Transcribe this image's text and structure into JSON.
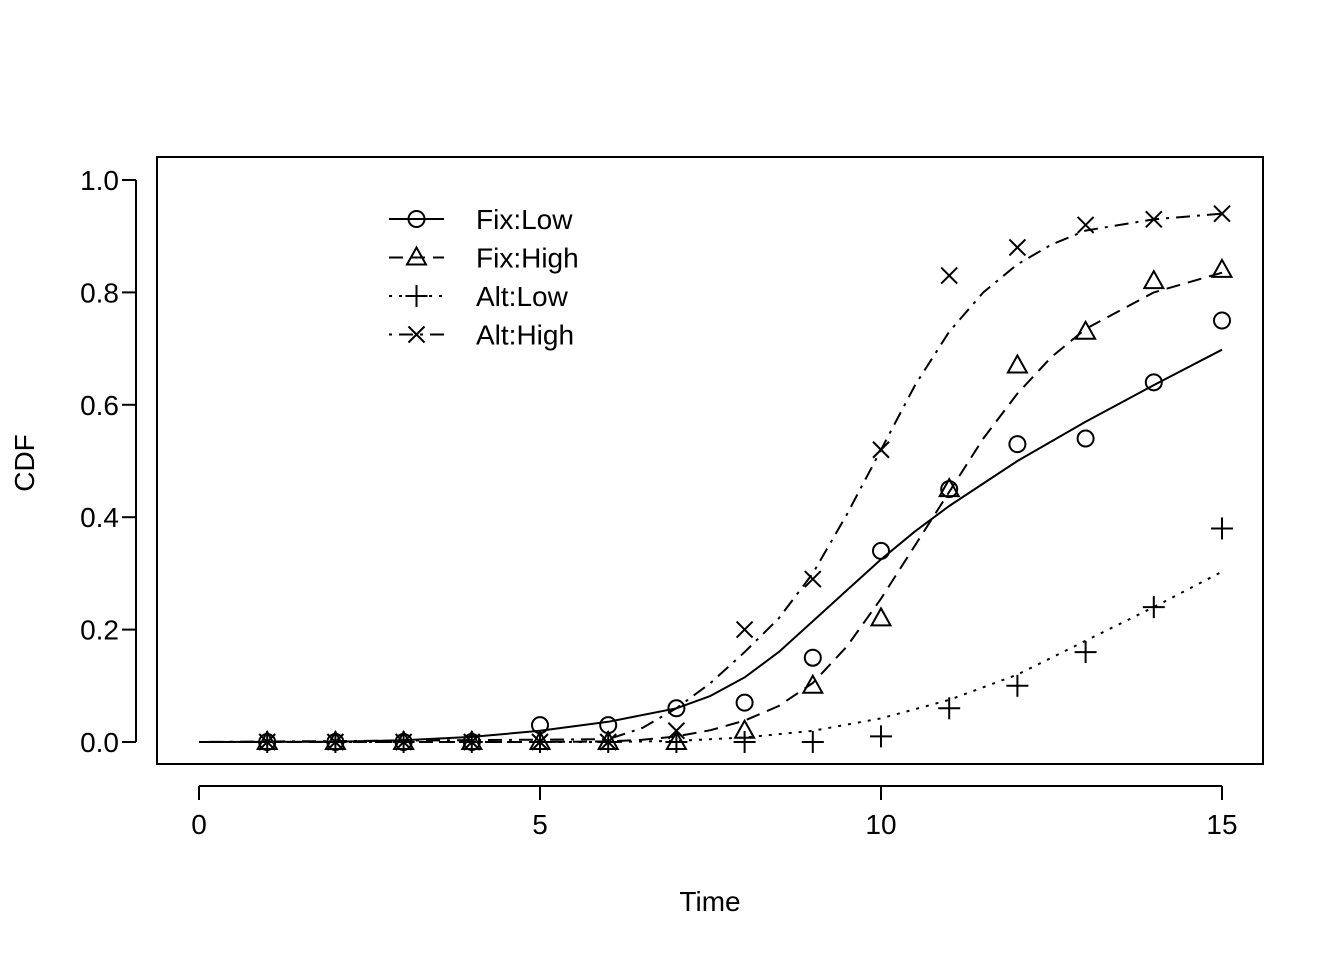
{
  "chart_data": {
    "type": "line",
    "title": "",
    "xlabel": "Time",
    "ylabel": "CDF",
    "xlim": [
      0,
      15
    ],
    "ylim": [
      0,
      1.0
    ],
    "x_ticks": [
      "0",
      "5",
      "10",
      "15"
    ],
    "y_ticks": [
      "0.0",
      "0.2",
      "0.4",
      "0.6",
      "0.8",
      "1.0"
    ],
    "legend_position": "top-left",
    "series": [
      {
        "name": "Fix:Low",
        "marker": "circle",
        "line_style": "solid",
        "points": {
          "x": [
            1,
            2,
            3,
            4,
            5,
            6,
            7,
            8,
            9,
            10,
            11,
            12,
            13,
            14,
            15
          ],
          "y": [
            0,
            0,
            0,
            0,
            0.03,
            0.03,
            0.06,
            0.07,
            0.15,
            0.34,
            0.45,
            0.53,
            0.54,
            0.64,
            0.75
          ]
        },
        "curve": {
          "x": [
            0,
            2,
            3,
            4,
            5,
            6,
            7,
            7.5,
            8,
            8.5,
            9,
            9.5,
            10,
            10.5,
            11,
            11.5,
            12,
            13,
            14,
            15
          ],
          "y": [
            0,
            0.0005,
            0.003,
            0.009,
            0.02,
            0.036,
            0.06,
            0.082,
            0.115,
            0.16,
            0.215,
            0.27,
            0.325,
            0.375,
            0.42,
            0.46,
            0.5,
            0.57,
            0.635,
            0.698
          ]
        }
      },
      {
        "name": "Fix:High",
        "marker": "triangle",
        "line_style": "dashed",
        "points": {
          "x": [
            1,
            2,
            3,
            4,
            5,
            6,
            7,
            8,
            9,
            10,
            11,
            12,
            13,
            14,
            15
          ],
          "y": [
            0,
            0,
            0,
            0,
            0,
            0,
            0,
            0.02,
            0.1,
            0.22,
            0.45,
            0.67,
            0.73,
            0.82,
            0.84
          ]
        },
        "curve": {
          "x": [
            0,
            5,
            6,
            6.5,
            7,
            7.5,
            8,
            8.5,
            9,
            9.5,
            10,
            10.5,
            11,
            11.5,
            12,
            12.5,
            13,
            14,
            15
          ],
          "y": [
            0,
            0,
            0.001,
            0.004,
            0.01,
            0.021,
            0.038,
            0.064,
            0.105,
            0.17,
            0.255,
            0.35,
            0.445,
            0.54,
            0.62,
            0.685,
            0.735,
            0.8,
            0.835
          ]
        }
      },
      {
        "name": "Alt:Low",
        "marker": "plus",
        "line_style": "dotted",
        "points": {
          "x": [
            1,
            2,
            3,
            4,
            5,
            6,
            7,
            8,
            9,
            10,
            11,
            12,
            13,
            14,
            15
          ],
          "y": [
            0,
            0,
            0,
            0,
            0,
            0,
            0,
            0,
            0,
            0.01,
            0.06,
            0.1,
            0.16,
            0.24,
            0.38
          ]
        },
        "curve": {
          "x": [
            0,
            6,
            7,
            8,
            9,
            10,
            11,
            12,
            13,
            14,
            15
          ],
          "y": [
            0,
            0,
            0.002,
            0.008,
            0.02,
            0.042,
            0.075,
            0.12,
            0.18,
            0.24,
            0.303
          ]
        }
      },
      {
        "name": "Alt:High",
        "marker": "cross",
        "line_style": "dotdash",
        "points": {
          "x": [
            1,
            2,
            3,
            4,
            5,
            6,
            7,
            8,
            9,
            10,
            11,
            12,
            13,
            14,
            15
          ],
          "y": [
            0,
            0,
            0,
            0,
            0,
            0,
            0.02,
            0.2,
            0.29,
            0.52,
            0.83,
            0.88,
            0.92,
            0.93,
            0.94
          ]
        },
        "curve": {
          "x": [
            0,
            6,
            6.5,
            7,
            7.5,
            8,
            8.5,
            9,
            9.5,
            10,
            10.5,
            11,
            11.5,
            12,
            12.5,
            13,
            14,
            15
          ],
          "y": [
            0,
            0.005,
            0.025,
            0.06,
            0.105,
            0.16,
            0.22,
            0.3,
            0.405,
            0.52,
            0.635,
            0.73,
            0.8,
            0.85,
            0.885,
            0.91,
            0.93,
            0.94
          ]
        }
      }
    ]
  }
}
